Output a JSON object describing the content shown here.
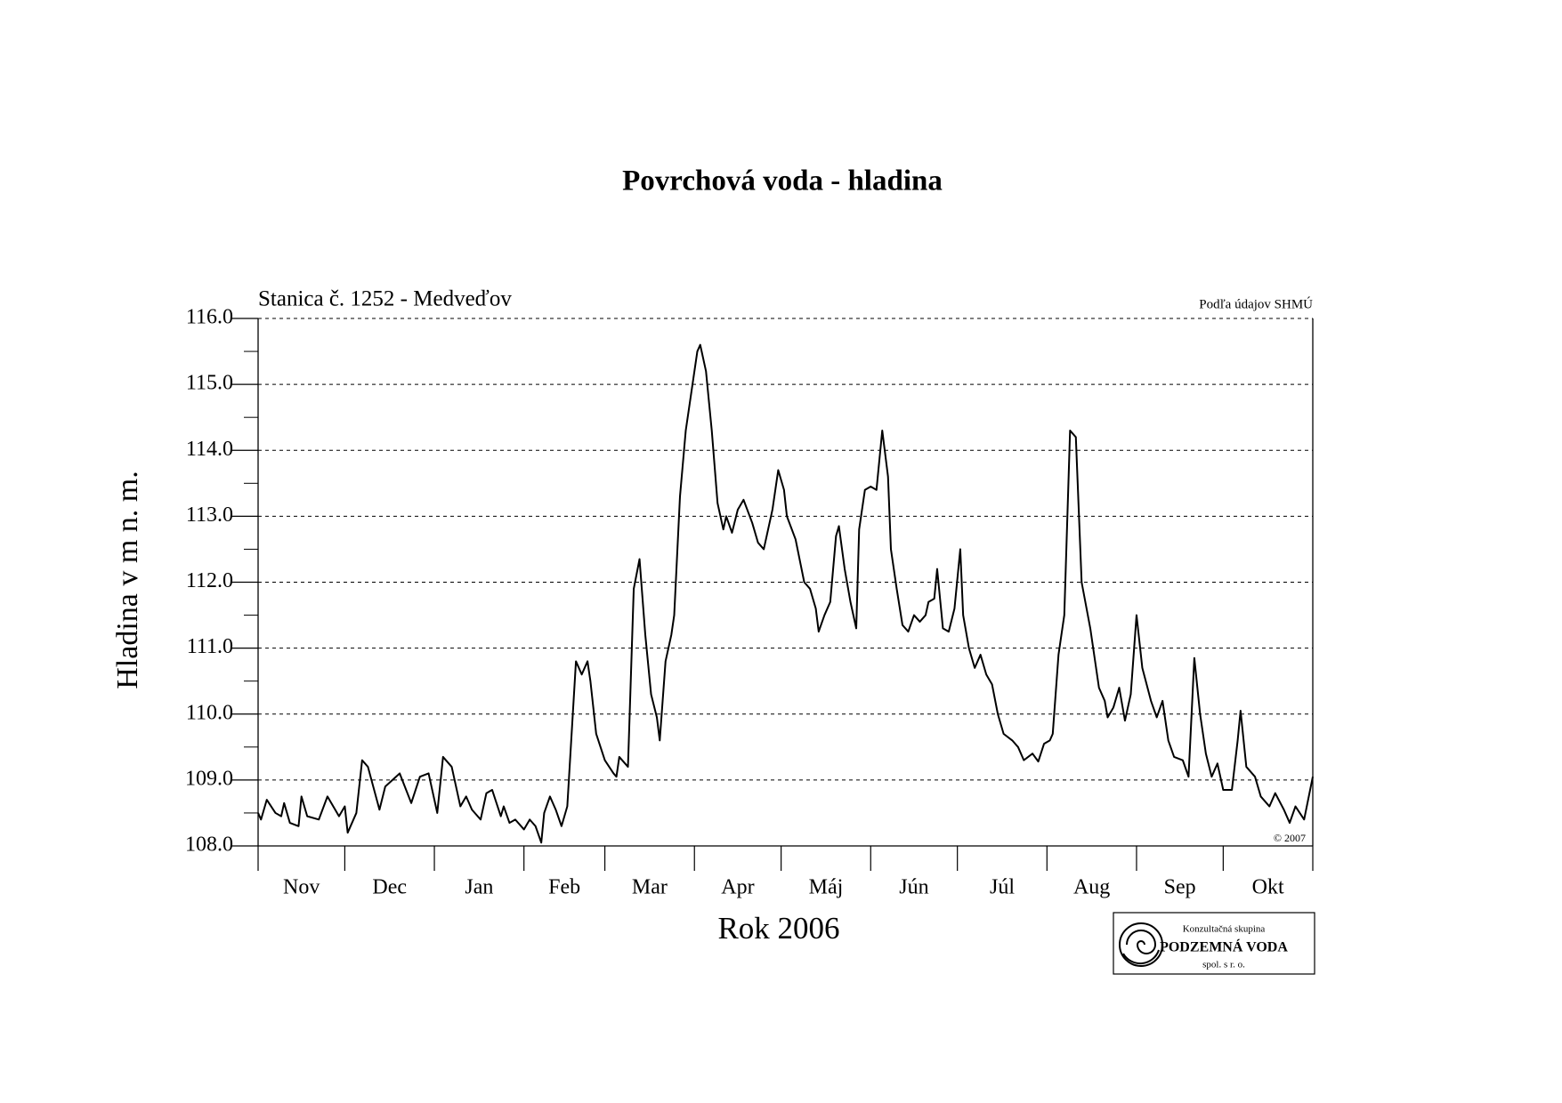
{
  "chart_data": {
    "type": "line",
    "title": "Povrchová voda - hladina",
    "subtitle": "Stanica č. 1252 - Medveďov",
    "source": "Podľa údajov SHMÚ",
    "copyright": "© 2007",
    "ylabel": "Hladina v m n. m.",
    "xlabel": "Rok 2006",
    "logo": {
      "line1": "Konzultačná skupina",
      "line2": "PODZEMNÁ VODA",
      "line3": "spol. s r. o."
    },
    "categories": [
      "Nov",
      "Dec",
      "Jan",
      "Feb",
      "Mar",
      "Apr",
      "Máj",
      "Jún",
      "Júl",
      "Aug",
      "Sep",
      "Okt"
    ],
    "xlim": [
      0,
      365
    ],
    "xticks": [
      0,
      30,
      61,
      92,
      120,
      151,
      181,
      212,
      242,
      273,
      304,
      334,
      365
    ],
    "ylim": [
      108,
      116
    ],
    "yticks": [
      {
        "value": 108,
        "label": "108.0"
      },
      {
        "value": 109,
        "label": "109.0"
      },
      {
        "value": 110,
        "label": "110.0"
      },
      {
        "value": 111,
        "label": "111.0"
      },
      {
        "value": 112,
        "label": "112.0"
      },
      {
        "value": 113,
        "label": "113.0"
      },
      {
        "value": 114,
        "label": "114.0"
      },
      {
        "value": 115,
        "label": "115.0"
      },
      {
        "value": 116,
        "label": "116.0"
      }
    ],
    "grid": true,
    "color": "#000000",
    "x": [
      0,
      1,
      3,
      6,
      8,
      9,
      11,
      14,
      15,
      17,
      21,
      24,
      26,
      28,
      30,
      31,
      34,
      36,
      38,
      42,
      44,
      49,
      53,
      56,
      59,
      62,
      64,
      67,
      70,
      72,
      74,
      77,
      79,
      81,
      84,
      85,
      87,
      89,
      92,
      94,
      96,
      98,
      99,
      101,
      103,
      105,
      107,
      110,
      112,
      114,
      115,
      117,
      120,
      123,
      124,
      125,
      128,
      130,
      132,
      134,
      136,
      138,
      139,
      141,
      143,
      144,
      146,
      148,
      152,
      153,
      155,
      157,
      159,
      161,
      162,
      164,
      166,
      168,
      171,
      173,
      175,
      178,
      180,
      182,
      183,
      186,
      189,
      191,
      193,
      194,
      196,
      198,
      200,
      201,
      203,
      205,
      207,
      208,
      210,
      212,
      214,
      216,
      218,
      219,
      221,
      223,
      225,
      227,
      229,
      231,
      232,
      234,
      235,
      237,
      239,
      241,
      243,
      244,
      246,
      248,
      250,
      252,
      254,
      256,
      258,
      261,
      263,
      265,
      268,
      270,
      272,
      274,
      275,
      277,
      279,
      281,
      283,
      285,
      288,
      291,
      293,
      294,
      296,
      298,
      300,
      302,
      304,
      306,
      309,
      311,
      313,
      315,
      317,
      320,
      322,
      324,
      326,
      328,
      330,
      332,
      334,
      337,
      339,
      340,
      342,
      345,
      347,
      350,
      352,
      355,
      357,
      359,
      362,
      365
    ],
    "values": [
      108.5,
      108.4,
      108.7,
      108.5,
      108.45,
      108.65,
      108.35,
      108.3,
      108.75,
      108.45,
      108.4,
      108.75,
      108.6,
      108.45,
      108.6,
      108.2,
      108.5,
      109.3,
      109.2,
      108.55,
      108.9,
      109.1,
      108.65,
      109.05,
      109.1,
      108.5,
      109.35,
      109.2,
      108.6,
      108.75,
      108.55,
      108.4,
      108.8,
      108.85,
      108.45,
      108.6,
      108.35,
      108.4,
      108.25,
      108.4,
      108.3,
      108.05,
      108.5,
      108.75,
      108.55,
      108.3,
      108.6,
      110.8,
      110.6,
      110.8,
      110.5,
      109.7,
      109.3,
      109.1,
      109.05,
      109.35,
      109.2,
      111.9,
      112.35,
      111.2,
      110.3,
      109.95,
      109.6,
      110.8,
      111.2,
      111.5,
      113.3,
      114.3,
      115.5,
      115.6,
      115.2,
      114.3,
      113.2,
      112.8,
      113.0,
      112.75,
      113.1,
      113.25,
      112.9,
      112.6,
      112.5,
      113.1,
      113.7,
      113.4,
      113.0,
      112.65,
      112.0,
      111.9,
      111.6,
      111.25,
      111.5,
      111.7,
      112.7,
      112.85,
      112.2,
      111.7,
      111.3,
      112.8,
      113.4,
      113.45,
      113.4,
      114.3,
      113.6,
      112.5,
      111.9,
      111.35,
      111.25,
      111.5,
      111.4,
      111.5,
      111.7,
      111.75,
      112.2,
      111.3,
      111.25,
      111.6,
      112.5,
      111.5,
      111.0,
      110.7,
      110.9,
      110.6,
      110.45,
      110.0,
      109.7,
      109.6,
      109.5,
      109.3,
      109.4,
      109.28,
      109.55,
      109.6,
      109.7,
      110.9,
      111.5,
      114.3,
      114.2,
      112.0,
      111.3,
      110.4,
      110.2,
      109.95,
      110.1,
      110.4,
      109.9,
      110.3,
      111.5,
      110.7,
      110.2,
      109.95,
      110.2,
      109.6,
      109.35,
      109.3,
      109.05,
      110.85,
      110.0,
      109.4,
      109.05,
      109.25,
      108.85,
      108.85,
      109.6,
      110.05,
      109.2,
      109.05,
      108.75,
      108.6,
      108.8,
      108.55,
      108.35,
      108.6,
      108.4,
      109.05
    ]
  }
}
